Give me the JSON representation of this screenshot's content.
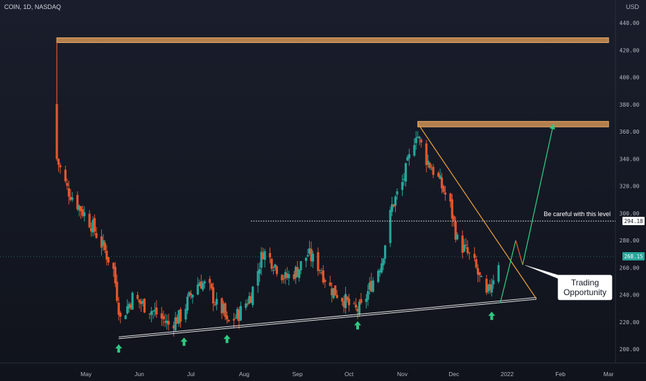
{
  "header": {
    "symbol_line": "COIN, 1D, NASDAQ",
    "currency": "USD"
  },
  "price_axis": {
    "ticks": [
      "440.00",
      "420.00",
      "400.00",
      "380.00",
      "360.00",
      "340.00",
      "320.00",
      "300.00",
      "280.00",
      "260.00",
      "240.00",
      "220.00",
      "200.00"
    ]
  },
  "time_axis": {
    "labels": [
      "May",
      "Jun",
      "Jul",
      "Aug",
      "Sep",
      "Oct",
      "Nov",
      "Dec",
      "2022",
      "Feb",
      "Mar"
    ]
  },
  "annotations": {
    "level_note": "Be careful with this level",
    "level_price": "294.18",
    "last_price": "268.15",
    "callout_line1": "Trading",
    "callout_line2": "Opportunity"
  },
  "colors": {
    "up": "#26a69a",
    "down": "#e4572e",
    "resistance_zone": "#e8a05a",
    "trendline": "#e39a3b",
    "support": "#e6e6e6",
    "arrow": "#2ec980",
    "projection_up": "#2ec980",
    "projection_down": "#e4572e"
  },
  "icons": {
    "pivot_marker": "up-arrow-icon",
    "callout": "speech-bubble-icon"
  },
  "chart_data": {
    "type": "candlestick",
    "title": "COIN, 1D, NASDAQ",
    "ylabel": "USD",
    "ylim": [
      190,
      447
    ],
    "x_range": [
      "2021-04-14",
      "2022-03-01"
    ],
    "date_ticks": [
      "2021-05-01",
      "2021-06-01",
      "2021-07-01",
      "2021-08-01",
      "2021-09-01",
      "2021-10-01",
      "2021-11-01",
      "2021-12-01",
      "2022-01-01",
      "2022-02-01",
      "2022-03-01"
    ],
    "series": [
      {
        "type": "close",
        "values": [
          [
            "2021-04-14",
            340
          ],
          [
            "2021-04-20",
            318
          ],
          [
            "2021-04-27",
            305
          ],
          [
            "2021-05-04",
            292
          ],
          [
            "2021-05-11",
            275
          ],
          [
            "2021-05-17",
            258
          ],
          [
            "2021-05-21",
            222
          ],
          [
            "2021-05-28",
            238
          ],
          [
            "2021-06-04",
            232
          ],
          [
            "2021-06-11",
            226
          ],
          [
            "2021-06-18",
            218
          ],
          [
            "2021-06-25",
            224
          ],
          [
            "2021-07-01",
            240
          ],
          [
            "2021-07-06",
            250
          ],
          [
            "2021-07-12",
            244
          ],
          [
            "2021-07-16",
            232
          ],
          [
            "2021-07-20",
            228
          ],
          [
            "2021-07-22",
            218
          ],
          [
            "2021-07-29",
            226
          ],
          [
            "2021-08-05",
            240
          ],
          [
            "2021-08-12",
            272
          ],
          [
            "2021-08-19",
            262
          ],
          [
            "2021-08-25",
            252
          ],
          [
            "2021-09-01",
            258
          ],
          [
            "2021-09-07",
            270
          ],
          [
            "2021-09-14",
            260
          ],
          [
            "2021-09-20",
            245
          ],
          [
            "2021-09-27",
            238
          ],
          [
            "2021-10-04",
            228
          ],
          [
            "2021-10-08",
            230
          ],
          [
            "2021-10-14",
            248
          ],
          [
            "2021-10-20",
            265
          ],
          [
            "2021-10-26",
            305
          ],
          [
            "2021-11-01",
            322
          ],
          [
            "2021-11-05",
            340
          ],
          [
            "2021-11-09",
            360
          ],
          [
            "2021-11-15",
            340
          ],
          [
            "2021-11-22",
            325
          ],
          [
            "2021-11-29",
            305
          ],
          [
            "2021-12-03",
            280
          ],
          [
            "2021-12-08",
            272
          ],
          [
            "2021-12-13",
            262
          ],
          [
            "2021-12-17",
            248
          ],
          [
            "2021-12-20",
            238
          ],
          [
            "2021-12-23",
            250
          ],
          [
            "2021-12-27",
            265
          ]
        ]
      }
    ],
    "horizontal_levels": [
      {
        "label": "294.18",
        "value": 294.18,
        "style": "dotted"
      }
    ],
    "zones": [
      {
        "name": "resistance",
        "range": [
          425.5,
          429
        ],
        "from": "2021-04-14",
        "to": "2022-03-01"
      },
      {
        "name": "resistance",
        "range": [
          363.5,
          367.5
        ],
        "from": "2021-11-10",
        "to": "2022-03-01"
      }
    ],
    "trendlines": [
      {
        "name": "support",
        "from": [
          "2021-05-20",
          209
        ],
        "to": [
          "2022-01-18",
          238
        ]
      },
      {
        "name": "descending",
        "from": [
          "2021-11-10",
          366
        ],
        "to": [
          "2022-01-18",
          237
        ]
      }
    ],
    "projection": [
      [
        "2021-12-28",
        234
      ],
      [
        "2022-01-06",
        280
      ],
      [
        "2022-01-10",
        262
      ],
      [
        "2022-01-28",
        366
      ]
    ],
    "pivot_markers": [
      "2021-05-20",
      "2021-06-27",
      "2021-07-22",
      "2021-10-06",
      "2021-12-23"
    ]
  }
}
